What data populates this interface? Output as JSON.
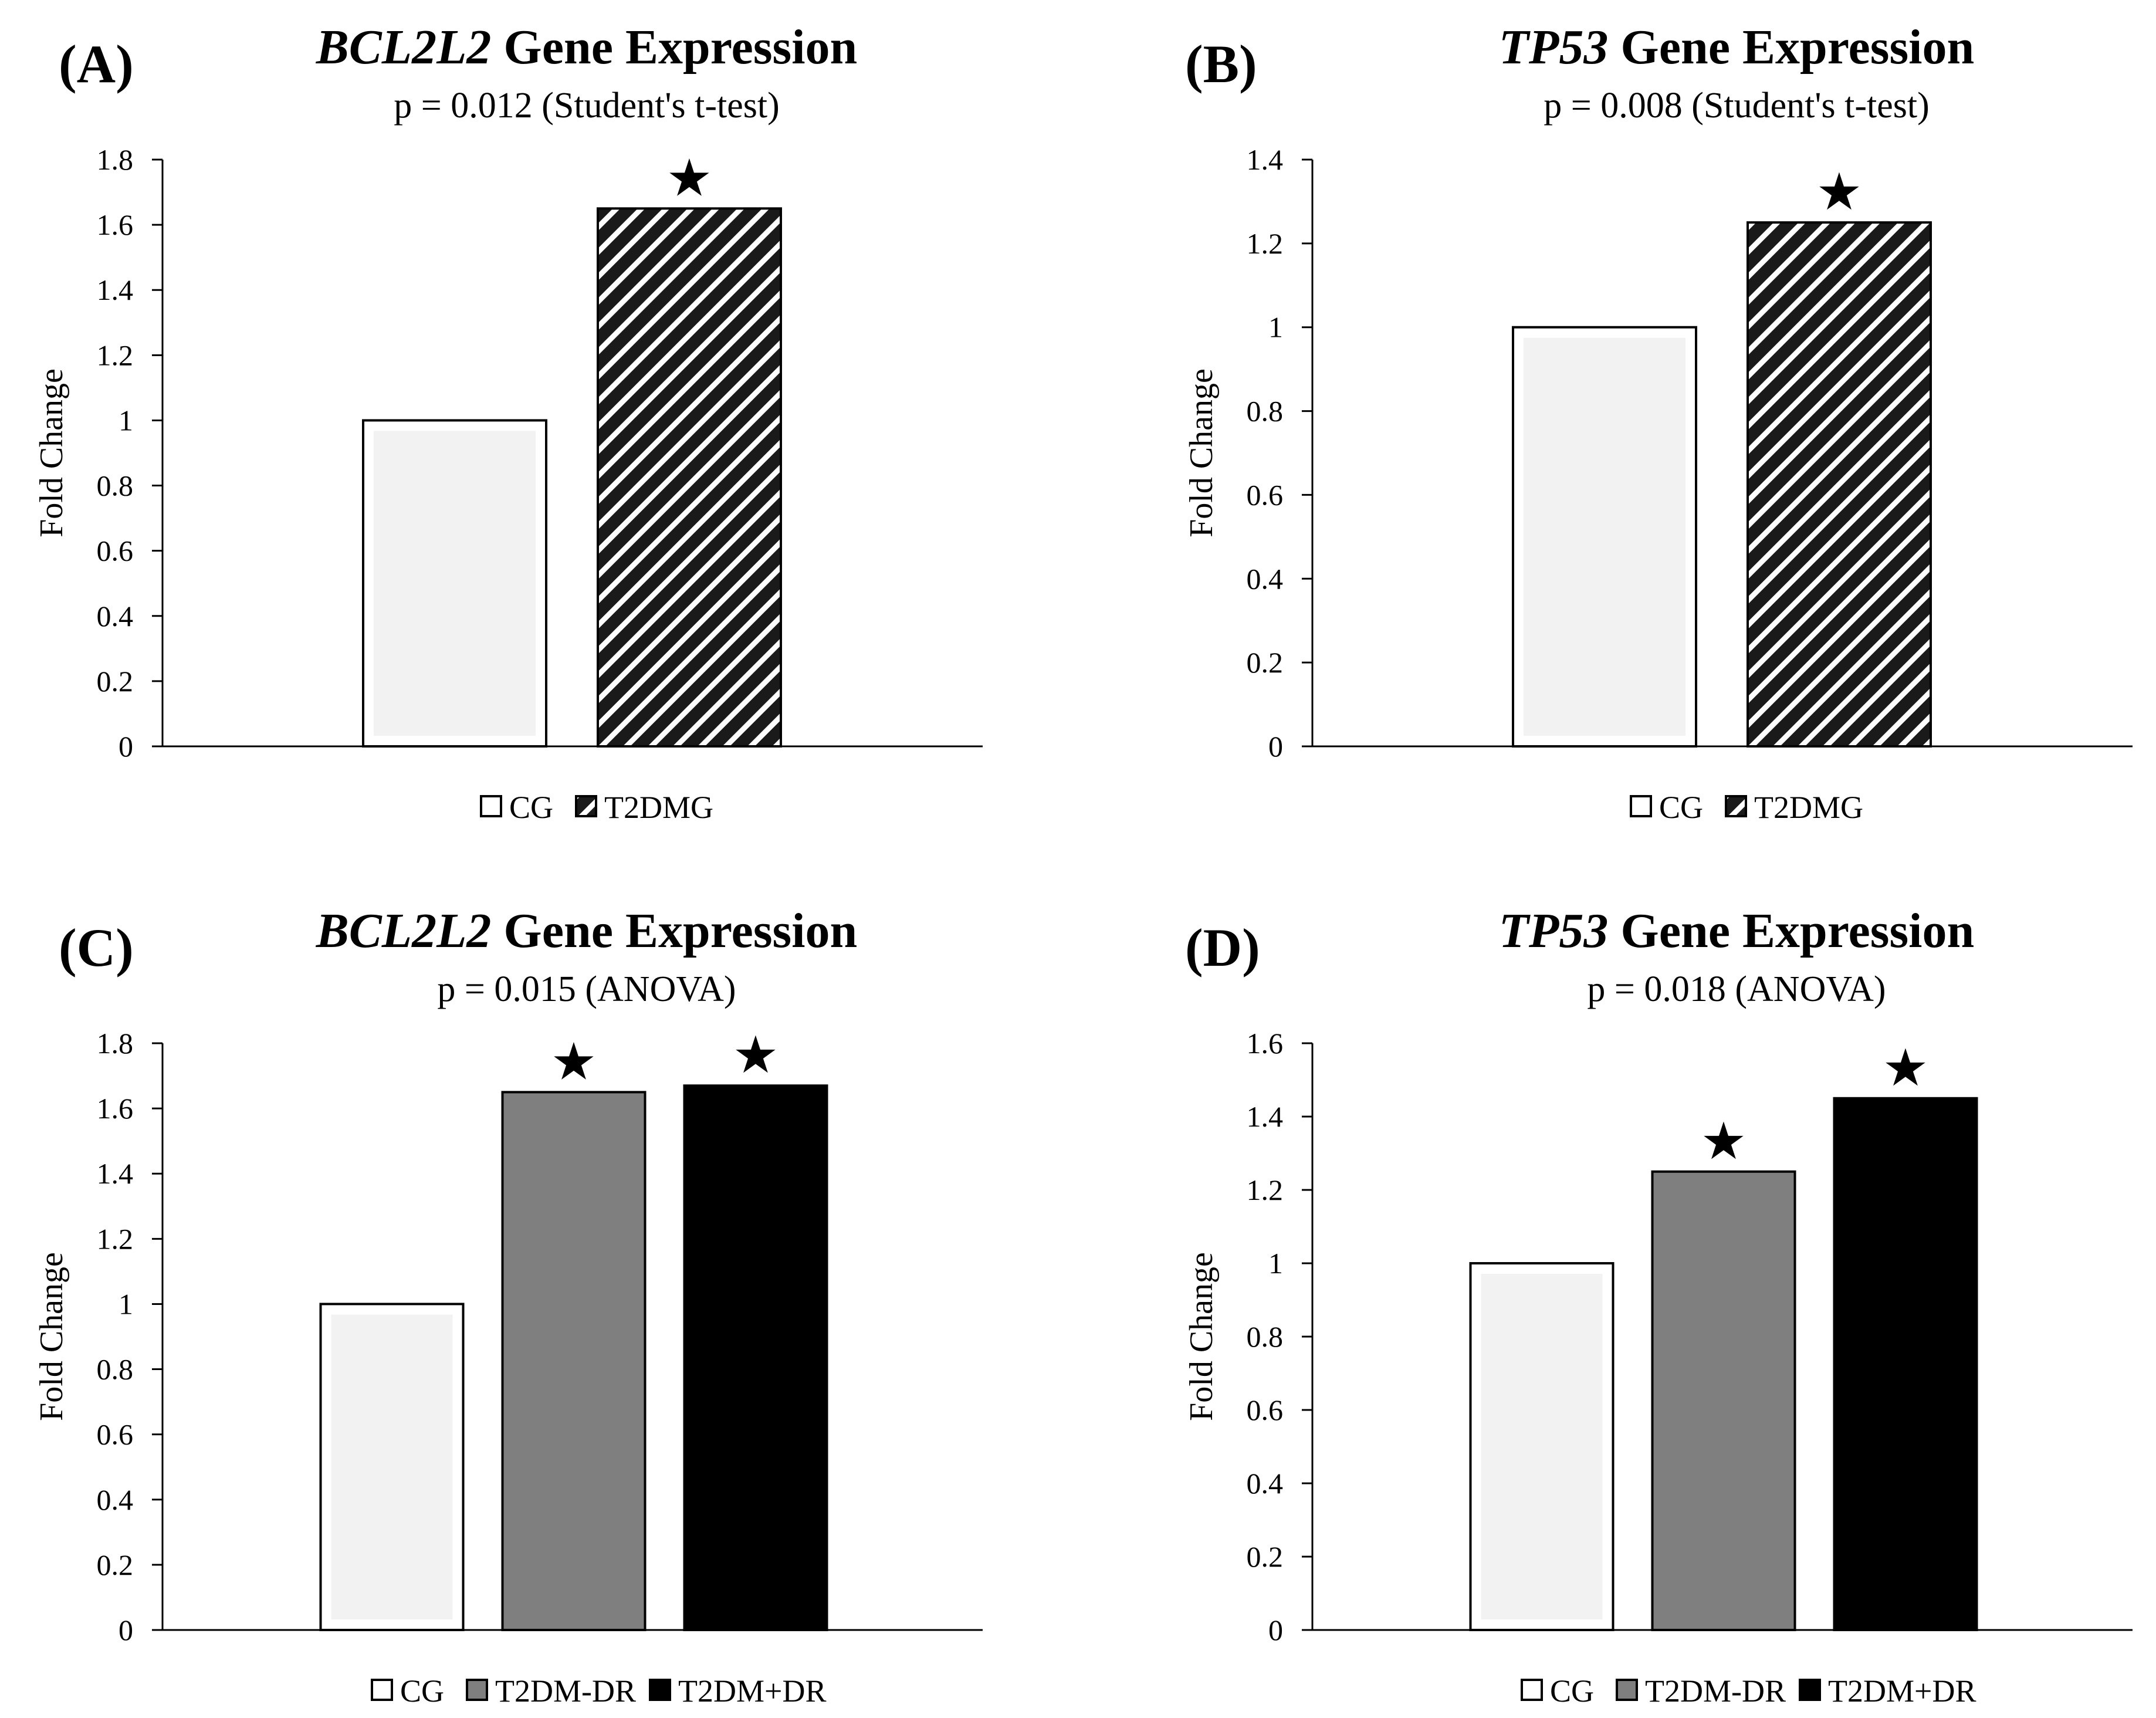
{
  "patterns": {
    "CG": "cg",
    "T2DMG": "stripes",
    "T2DM-DR": "gray",
    "T2DM+DR": "black"
  },
  "colors": {
    "cg_fill": "#f2f2f2",
    "gray": "#7f7f7f",
    "black": "#000000",
    "outline": "#000000"
  },
  "chart_data": [
    {
      "panel": "(A)",
      "type": "bar",
      "title_italic": "BCL2L2",
      "title_rest": " Gene Expression",
      "subtitle": "p = 0.012 (Student's t-test)",
      "ylabel": "Fold Change",
      "ylim": [
        0,
        1.8
      ],
      "yticks": [
        "0",
        "0.2",
        "0.4",
        "0.6",
        "0.8",
        "1",
        "1.2",
        "1.4",
        "1.6",
        "1.8"
      ],
      "categories": [
        "CG",
        "T2DMG"
      ],
      "values": [
        1,
        1.65
      ],
      "significant": [
        false,
        true
      ],
      "legend": [
        "CG",
        "T2DMG"
      ]
    },
    {
      "panel": "(B)",
      "type": "bar",
      "title_italic": "TP53",
      "title_rest": " Gene Expression",
      "subtitle": "p = 0.008 (Student's t-test)",
      "ylabel": "Fold Change",
      "ylim": [
        0,
        1.4
      ],
      "yticks": [
        "0",
        "0.2",
        "0.4",
        "0.6",
        "0.8",
        "1",
        "1.2",
        "1.4"
      ],
      "categories": [
        "CG",
        "T2DMG"
      ],
      "values": [
        1,
        1.25
      ],
      "significant": [
        false,
        true
      ],
      "legend": [
        "CG",
        "T2DMG"
      ]
    },
    {
      "panel": "(C)",
      "type": "bar",
      "title_italic": "BCL2L2",
      "title_rest": " Gene Expression",
      "subtitle": "p = 0.015 (ANOVA)",
      "ylabel": "Fold Change",
      "ylim": [
        0,
        1.8
      ],
      "yticks": [
        "0",
        "0.2",
        "0.4",
        "0.6",
        "0.8",
        "1",
        "1.2",
        "1.4",
        "1.6",
        "1.8"
      ],
      "categories": [
        "CG",
        "T2DM-DR",
        "T2DM+DR"
      ],
      "values": [
        1,
        1.65,
        1.67
      ],
      "significant": [
        false,
        true,
        true
      ],
      "legend": [
        "CG",
        "T2DM-DR",
        "T2DM+DR"
      ]
    },
    {
      "panel": "(D)",
      "type": "bar",
      "title_italic": "TP53",
      "title_rest": " Gene Expression",
      "subtitle": "p = 0.018 (ANOVA)",
      "ylabel": "Fold Change",
      "ylim": [
        0,
        1.6
      ],
      "yticks": [
        "0",
        "0.2",
        "0.4",
        "0.6",
        "0.8",
        "1",
        "1.2",
        "1.4",
        "1.6"
      ],
      "categories": [
        "CG",
        "T2DM-DR",
        "T2DM+DR"
      ],
      "values": [
        1,
        1.25,
        1.45
      ],
      "significant": [
        false,
        true,
        true
      ],
      "legend": [
        "CG",
        "T2DM-DR",
        "T2DM+DR"
      ]
    }
  ]
}
